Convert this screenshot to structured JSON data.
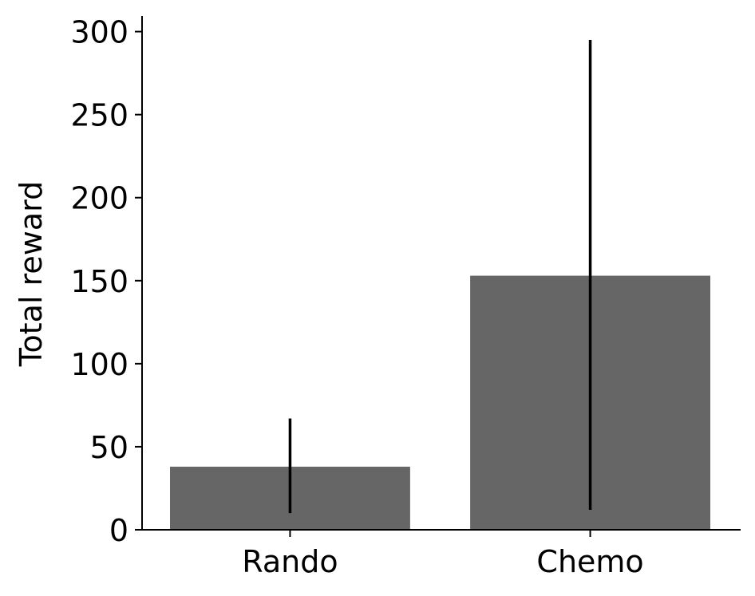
{
  "chart_data": {
    "type": "bar",
    "title": "",
    "xlabel": "",
    "ylabel": "Total reward",
    "categories": [
      "Rando",
      "Chemo"
    ],
    "values": [
      38,
      153
    ],
    "error_bars": [
      {
        "low": 10,
        "high": 67
      },
      {
        "low": 12,
        "high": 295
      }
    ],
    "ylim": [
      0,
      310
    ],
    "yticks": [
      0,
      50,
      100,
      150,
      200,
      250,
      300
    ],
    "grid": false,
    "legend": "none",
    "bar_color": "#666666",
    "errorbar_color": "#000000"
  }
}
